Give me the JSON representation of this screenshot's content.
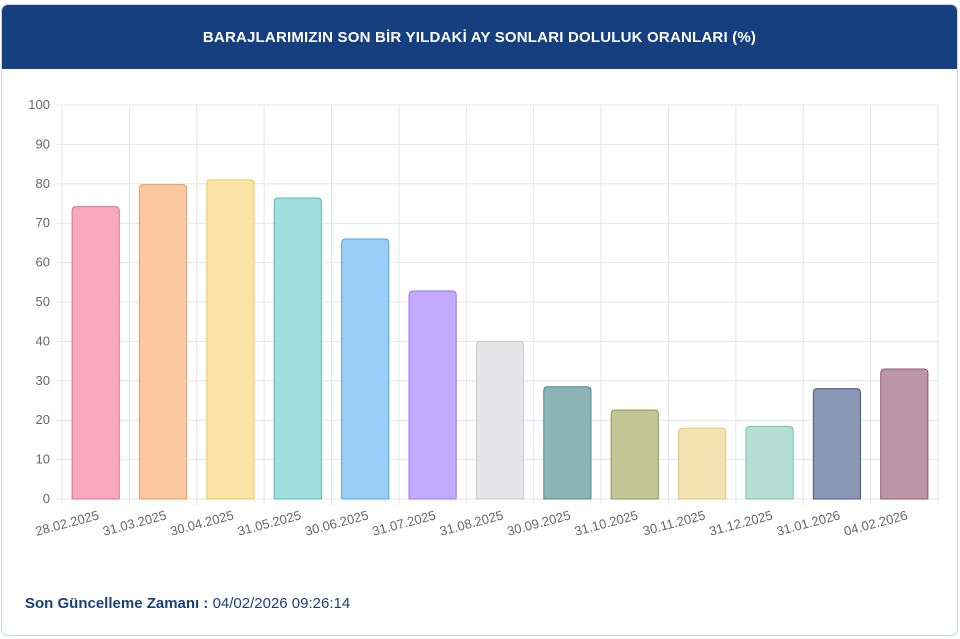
{
  "header": {
    "title": "BARAJLARIMIZIN SON BİR YILDAKİ AY SONLARI DOLULUK ORANLARI (%)"
  },
  "footer": {
    "label": "Son Güncelleme Zamanı :",
    "value": "04/02/2026 09:26:14"
  },
  "colors": {
    "header_bg": "#153f7f",
    "bar_fills": [
      "#f7a8bb",
      "#fbc8a0",
      "#fbe3a6",
      "#9fe0de",
      "#99cdf6",
      "#c2a9fb",
      "#e4e4e6",
      "#8ab4b6",
      "#c2c796",
      "#f4e1b2",
      "#b5dfd3",
      "#8998b5",
      "#bd97a6"
    ],
    "bar_strokes": [
      "#e0708c",
      "#ef9a5c",
      "#eec65e",
      "#52bfbb",
      "#4ea6e8",
      "#9a73f1",
      "#c9c9cc",
      "#50878b",
      "#8e9652",
      "#e5c77a",
      "#79c2ac",
      "#485b82",
      "#8d5a6f"
    ]
  },
  "chart_data": {
    "type": "bar",
    "categories": [
      "28.02.2025",
      "31.03.2025",
      "30.04.2025",
      "31.05.2025",
      "30.06.2025",
      "31.07.2025",
      "31.08.2025",
      "30.09.2025",
      "31.10.2025",
      "30.11.2025",
      "31.12.2025",
      "31.01.2026",
      "04.02.2026"
    ],
    "values": [
      74.2,
      79.8,
      81.0,
      76.4,
      66.0,
      52.8,
      40.0,
      28.5,
      22.6,
      18.0,
      18.4,
      28.0,
      33.0
    ],
    "ylim": [
      0,
      100
    ],
    "yticks": [
      0,
      10,
      20,
      30,
      40,
      50,
      60,
      70,
      80,
      90,
      100
    ],
    "grid": true,
    "legend": "none"
  }
}
